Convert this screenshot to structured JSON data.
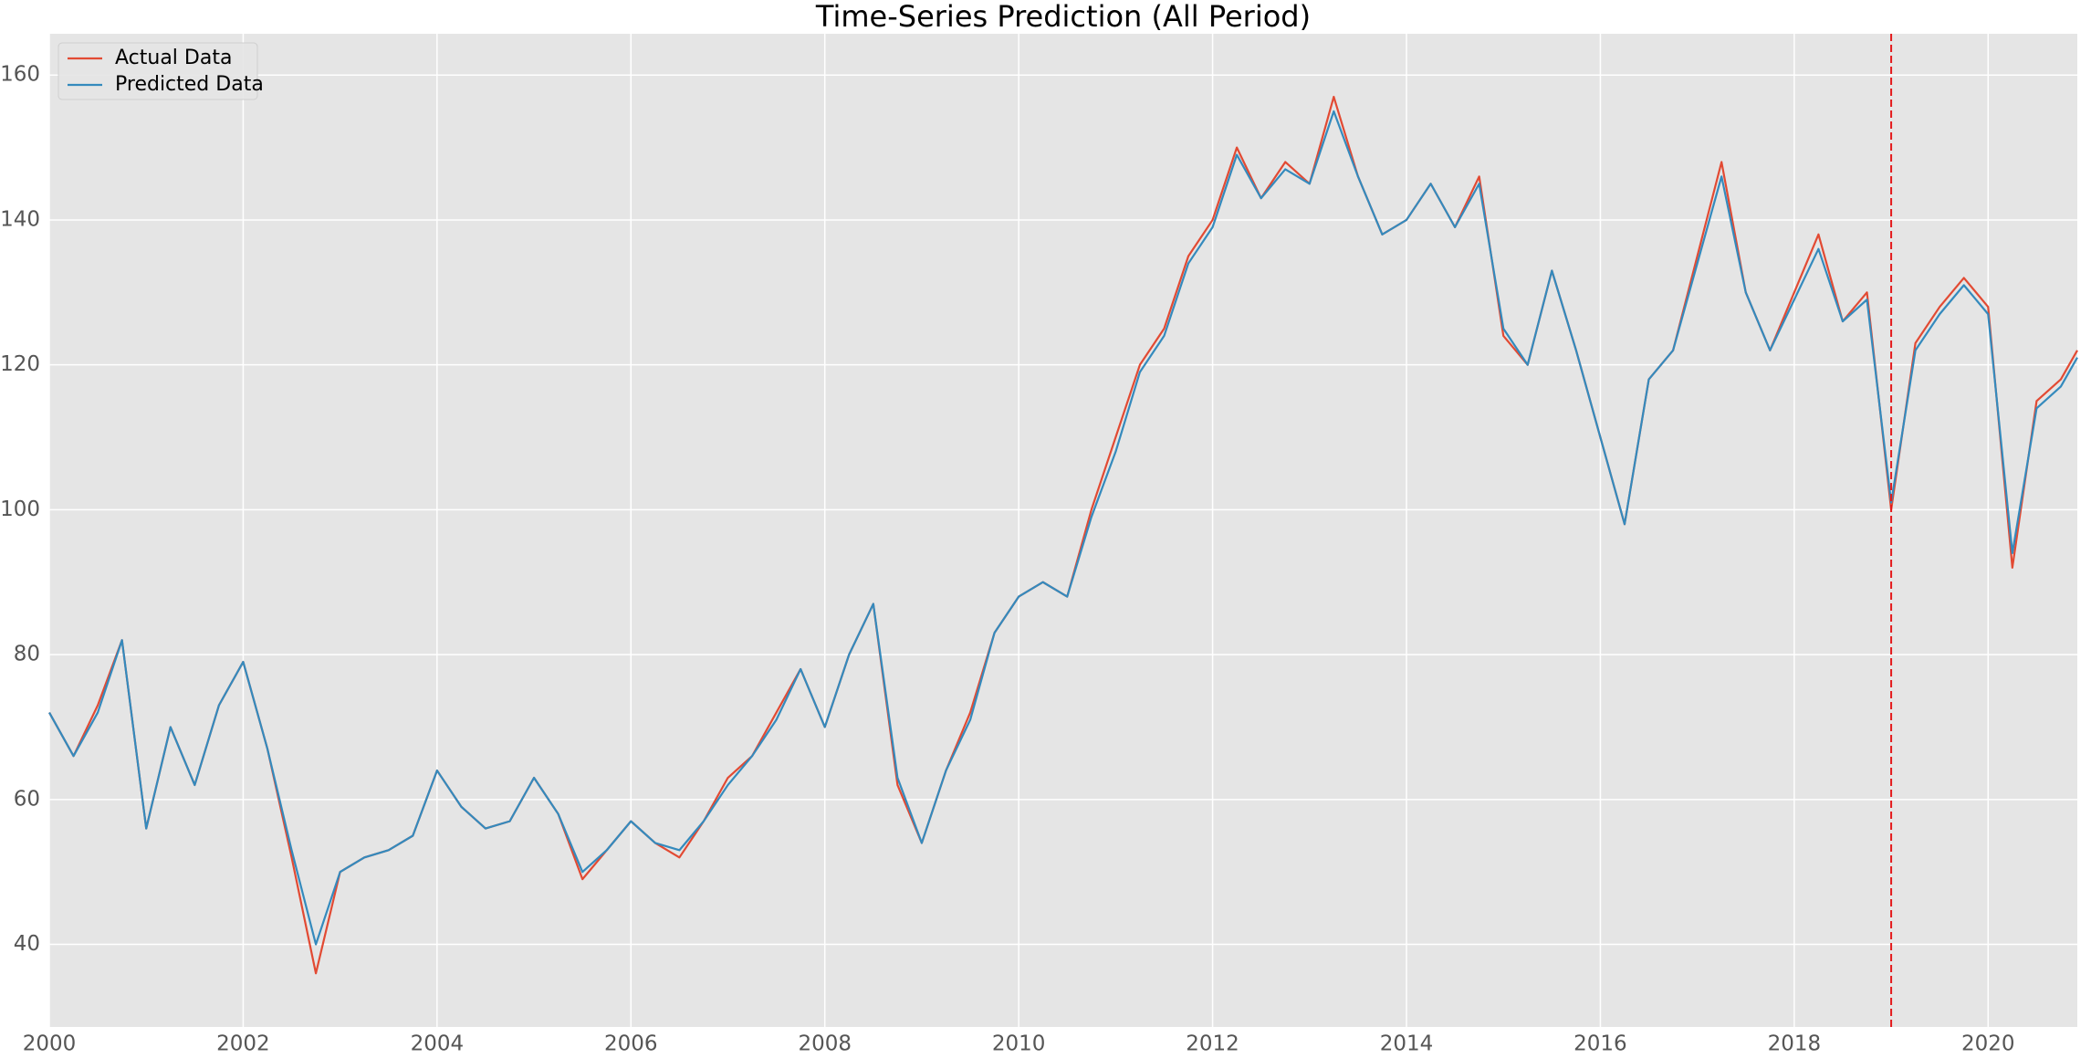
{
  "chart_data": {
    "type": "line",
    "title": "Time-Series Prediction (All Period)",
    "x": [
      2000.0,
      2000.25,
      2000.5,
      2000.75,
      2001.0,
      2001.25,
      2001.5,
      2001.75,
      2002.0,
      2002.25,
      2002.5,
      2002.75,
      2003.0,
      2003.25,
      2003.5,
      2003.75,
      2004.0,
      2004.25,
      2004.5,
      2004.75,
      2005.0,
      2005.25,
      2005.5,
      2005.75,
      2006.0,
      2006.25,
      2006.5,
      2006.75,
      2007.0,
      2007.25,
      2007.5,
      2007.75,
      2008.0,
      2008.25,
      2008.5,
      2008.75,
      2009.0,
      2009.25,
      2009.5,
      2009.75,
      2010.0,
      2010.25,
      2010.5,
      2010.75,
      2011.0,
      2011.25,
      2011.5,
      2011.75,
      2012.0,
      2012.25,
      2012.5,
      2012.75,
      2013.0,
      2013.25,
      2013.5,
      2013.75,
      2014.0,
      2014.25,
      2014.5,
      2014.75,
      2015.0,
      2015.25,
      2015.5,
      2015.75,
      2016.0,
      2016.25,
      2016.5,
      2016.75,
      2017.0,
      2017.25,
      2017.5,
      2017.75,
      2018.0,
      2018.25,
      2018.5,
      2018.75,
      2019.0,
      2019.25,
      2019.5,
      2019.75,
      2020.0,
      2020.25,
      2020.5,
      2020.75,
      2020.92
    ],
    "series": [
      {
        "name": "Actual Data",
        "color": "#e24a33",
        "values": [
          72,
          66,
          73,
          82,
          56,
          70,
          62,
          73,
          79,
          67,
          52,
          36,
          50,
          52,
          53,
          55,
          64,
          59,
          56,
          57,
          63,
          58,
          49,
          53,
          57,
          54,
          52,
          57,
          63,
          66,
          72,
          78,
          70,
          80,
          87,
          62,
          54,
          64,
          72,
          83,
          88,
          90,
          88,
          100,
          110,
          120,
          125,
          135,
          140,
          150,
          143,
          148,
          145,
          157,
          146,
          138,
          140,
          145,
          139,
          146,
          124,
          120,
          133,
          122,
          110,
          98,
          118,
          122,
          135,
          148,
          130,
          122,
          130,
          138,
          126,
          130,
          100,
          123,
          128,
          132,
          128,
          92,
          115,
          118,
          122
        ]
      },
      {
        "name": "Predicted Data",
        "color": "#348abd",
        "values": [
          72,
          66,
          72,
          82,
          56,
          70,
          62,
          73,
          79,
          67,
          53,
          40,
          50,
          52,
          53,
          55,
          64,
          59,
          56,
          57,
          63,
          58,
          50,
          53,
          57,
          54,
          53,
          57,
          62,
          66,
          71,
          78,
          70,
          80,
          87,
          63,
          54,
          64,
          71,
          83,
          88,
          90,
          88,
          99,
          108,
          119,
          124,
          134,
          139,
          149,
          143,
          147,
          145,
          155,
          146,
          138,
          140,
          145,
          139,
          145,
          125,
          120,
          133,
          122,
          110,
          98,
          118,
          122,
          134,
          146,
          130,
          122,
          129,
          136,
          126,
          129,
          101,
          122,
          127,
          131,
          127,
          94,
          114,
          117,
          121
        ]
      }
    ],
    "xlim": [
      2000,
      2020.92
    ],
    "xticks": [
      2000,
      2002,
      2004,
      2006,
      2008,
      2010,
      2012,
      2014,
      2016,
      2018,
      2020
    ],
    "ylim": [
      28.6,
      165.7
    ],
    "yticks": [
      40,
      60,
      80,
      100,
      120,
      140,
      160
    ],
    "vline": {
      "x": 2019,
      "color": "#e41a1c"
    },
    "grid": true,
    "legend": "upper-left"
  }
}
